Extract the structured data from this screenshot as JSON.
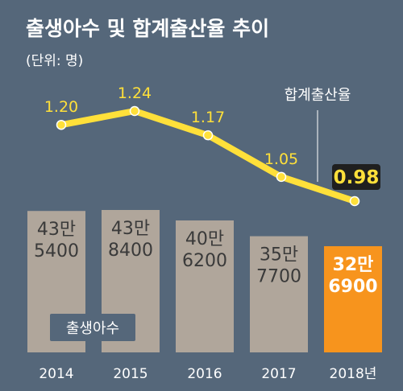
{
  "title": "출생아수 및 합계출산율 추이",
  "subtitle": "(단위: 명)",
  "colors": {
    "background": "#55677a",
    "bar": "#b0a69b",
    "bar_highlight": "#f7941d",
    "line": "#ffe03a",
    "bar_text": "#3a3a3a",
    "text": "#ffffff"
  },
  "chart_data": {
    "type": "bar+line",
    "categories": [
      "2014",
      "2015",
      "2016",
      "2017",
      "2018년"
    ],
    "series": [
      {
        "name": "출생아수",
        "type": "bar",
        "values": [
          435400,
          438400,
          406200,
          357700,
          326900
        ],
        "labels": [
          [
            "43만",
            "5400"
          ],
          [
            "43만",
            "8400"
          ],
          [
            "40만",
            "6200"
          ],
          [
            "35만",
            "7700"
          ],
          [
            "32만",
            "6900"
          ]
        ]
      },
      {
        "name": "합계출산율",
        "type": "line",
        "values": [
          1.2,
          1.24,
          1.17,
          1.05,
          0.98
        ],
        "labels": [
          "1.20",
          "1.24",
          "1.17",
          "1.05",
          "0.98"
        ]
      }
    ],
    "highlight_index": 4
  }
}
